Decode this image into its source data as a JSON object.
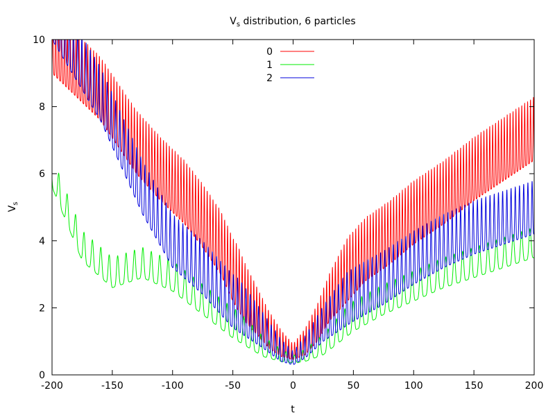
{
  "chart_data": {
    "type": "line",
    "title": "V",
    "title_subscript": "s",
    "title_rest": " distribution, 6 particles",
    "xlabel": "t",
    "ylabel": "V",
    "ylabel_subscript": "s",
    "xlim": [
      -200,
      200
    ],
    "ylim": [
      0,
      10
    ],
    "xticks": [
      -200,
      -150,
      -100,
      -50,
      0,
      50,
      100,
      150,
      200
    ],
    "yticks": [
      0,
      2,
      4,
      6,
      8,
      10
    ],
    "legend_position": "top-center",
    "series": [
      {
        "name": "0",
        "color": "#ff0000",
        "peaks": [
          {
            "x": 0,
            "y": 0.45
          },
          {
            "x": -10,
            "y": 0.55
          },
          {
            "x": 10,
            "y": 0.6
          },
          {
            "x": -20,
            "y": 0.8
          },
          {
            "x": 20,
            "y": 1.0
          },
          {
            "x": -30,
            "y": 1.2
          },
          {
            "x": 30,
            "y": 1.6
          },
          {
            "x": -40,
            "y": 1.6
          },
          {
            "x": 40,
            "y": 2.0
          },
          {
            "x": -50,
            "y": 2.2
          },
          {
            "x": 50,
            "y": 2.4
          },
          {
            "x": -60,
            "y": 3.0
          },
          {
            "x": 60,
            "y": 2.8
          },
          {
            "x": -75,
            "y": 3.8
          },
          {
            "x": 80,
            "y": 3.3
          },
          {
            "x": -90,
            "y": 4.5
          },
          {
            "x": 100,
            "y": 3.9
          },
          {
            "x": -110,
            "y": 5.2
          },
          {
            "x": 125,
            "y": 4.5
          },
          {
            "x": -130,
            "y": 6.0
          },
          {
            "x": 150,
            "y": 5.2
          },
          {
            "x": -160,
            "y": 7.6
          },
          {
            "x": 175,
            "y": 5.8
          },
          {
            "x": -200,
            "y": 9.0
          },
          {
            "x": 200,
            "y": 6.4
          }
        ]
      },
      {
        "name": "1",
        "color": "#00ee00",
        "peaks": [
          {
            "x": 0,
            "y": 0.35
          },
          {
            "x": -10,
            "y": 0.4
          },
          {
            "x": 10,
            "y": 0.4
          },
          {
            "x": -25,
            "y": 0.55
          },
          {
            "x": 25,
            "y": 0.6
          },
          {
            "x": -50,
            "y": 1.1
          },
          {
            "x": 50,
            "y": 1.3
          },
          {
            "x": -75,
            "y": 1.8
          },
          {
            "x": 75,
            "y": 1.8
          },
          {
            "x": -100,
            "y": 2.5
          },
          {
            "x": 100,
            "y": 2.2
          },
          {
            "x": -125,
            "y": 2.9
          },
          {
            "x": 125,
            "y": 2.6
          },
          {
            "x": -150,
            "y": 2.6
          },
          {
            "x": 150,
            "y": 2.9
          },
          {
            "x": -175,
            "y": 3.4
          },
          {
            "x": 175,
            "y": 3.2
          },
          {
            "x": -200,
            "y": 5.6
          },
          {
            "x": 200,
            "y": 3.5
          }
        ]
      },
      {
        "name": "2",
        "color": "#0000dd",
        "peaks": [
          {
            "x": 0,
            "y": 0.3
          },
          {
            "x": -10,
            "y": 0.4
          },
          {
            "x": 10,
            "y": 0.5
          },
          {
            "x": -25,
            "y": 0.8
          },
          {
            "x": 25,
            "y": 1.0
          },
          {
            "x": -50,
            "y": 1.4
          },
          {
            "x": 50,
            "y": 1.6
          },
          {
            "x": -75,
            "y": 2.4
          },
          {
            "x": 75,
            "y": 2.1
          },
          {
            "x": -100,
            "y": 3.2
          },
          {
            "x": 100,
            "y": 2.7
          },
          {
            "x": -125,
            "y": 4.8
          },
          {
            "x": 125,
            "y": 3.2
          },
          {
            "x": -160,
            "y": 7.6
          },
          {
            "x": 150,
            "y": 3.6
          },
          {
            "x": -200,
            "y": 10.0
          },
          {
            "x": 200,
            "y": 4.2
          }
        ]
      }
    ]
  }
}
